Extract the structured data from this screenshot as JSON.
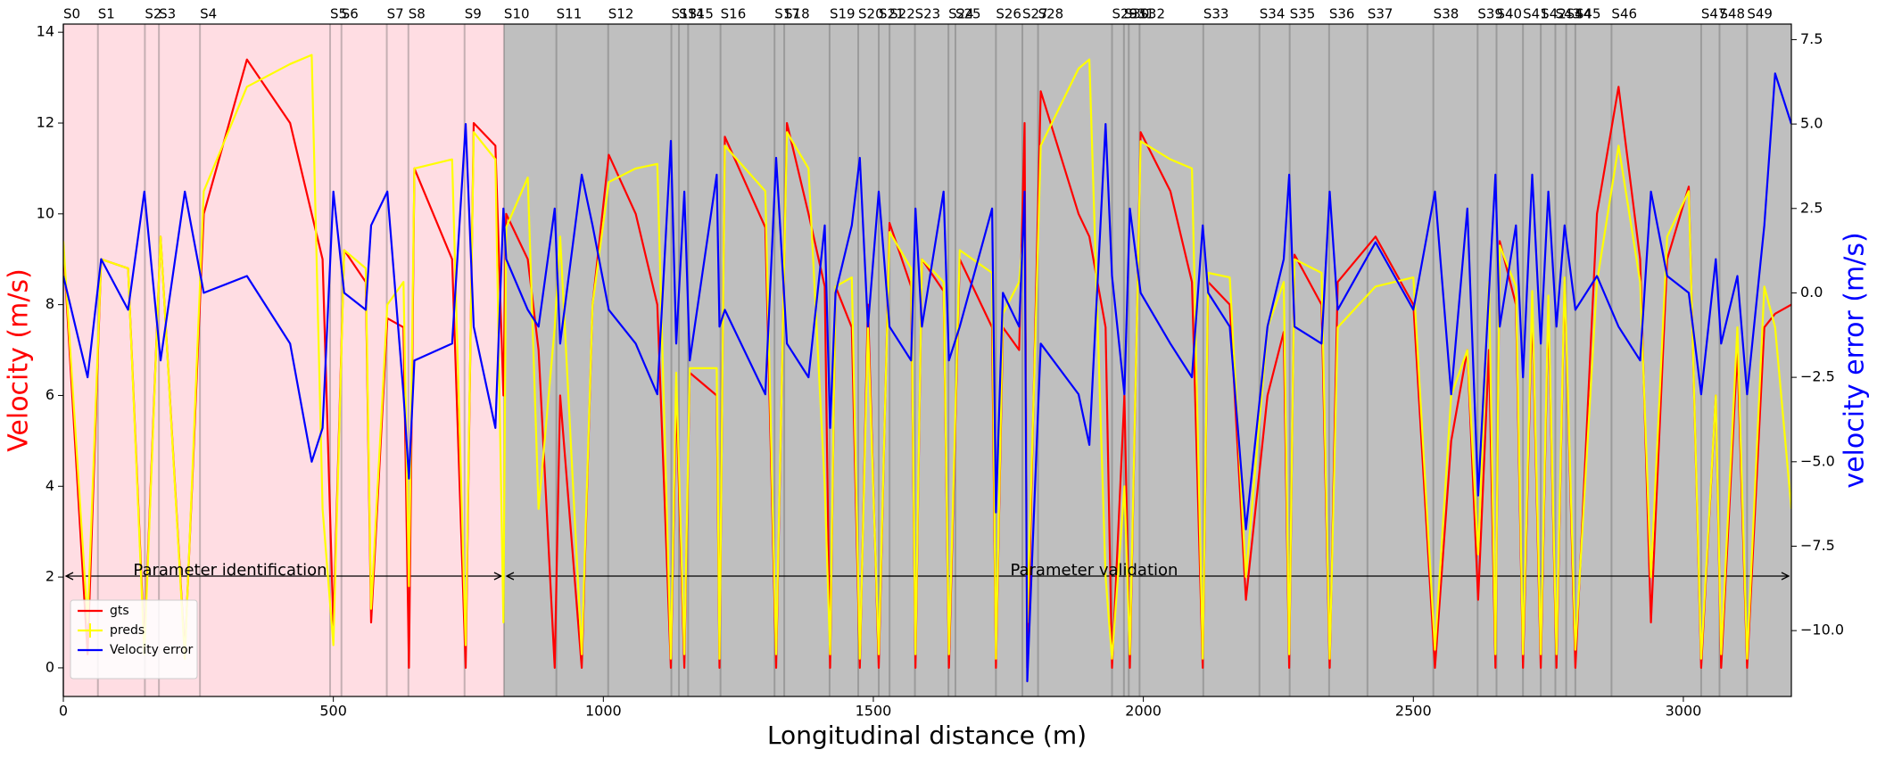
{
  "chart_data": {
    "type": "line",
    "x_label": "Longitudinal distance (m)",
    "y_label": "Velocity (m/s)",
    "y2_label": "velocity error (m/s)",
    "xlim": [
      0,
      3200
    ],
    "xticks": [
      0,
      500,
      1000,
      1500,
      2000,
      2500,
      3000
    ],
    "ylim": [
      -0.63,
      14.18
    ],
    "yticks": [
      0,
      2,
      4,
      6,
      8,
      10,
      12,
      14
    ],
    "y2lim": [
      -11.95,
      7.96
    ],
    "y2ticks": [
      {
        "value": -10,
        "label": "−10.0"
      },
      {
        "value": -7.5,
        "label": "−7.5"
      },
      {
        "value": -5,
        "label": "−5.0"
      },
      {
        "value": -2.5,
        "label": "−2.5"
      },
      {
        "value": 0,
        "label": "0.0"
      },
      {
        "value": 2.5,
        "label": "2.5"
      },
      {
        "value": 5,
        "label": "5.0"
      },
      {
        "value": 7.5,
        "label": "7.5"
      }
    ],
    "regions": [
      {
        "label": "Parameter identification",
        "start": 0,
        "end": 816,
        "color": "#ffdde3"
      },
      {
        "label": "Parameter validation",
        "start": 816,
        "end": 3200,
        "color": "#bfbfbf"
      }
    ],
    "segments": {
      "labels": [
        "S0",
        "S1",
        "S2",
        "S3",
        "S4",
        "S5",
        "S6",
        "S7",
        "S8",
        "S9",
        "S10",
        "S11",
        "S12",
        "S13",
        "S14",
        "S15",
        "S16",
        "S17",
        "S18",
        "S19",
        "S20",
        "S21",
        "S22",
        "S23",
        "S24",
        "S25",
        "S26",
        "S27",
        "S28",
        "S29",
        "S30",
        "S31",
        "S32",
        "S33",
        "S34",
        "S35",
        "S36",
        "S37",
        "S38",
        "S39",
        "S40",
        "S41",
        "S42",
        "S43",
        "S44",
        "S45",
        "S46",
        "S47",
        "S48",
        "S49"
      ],
      "x": [
        0,
        64,
        151,
        177,
        253,
        494,
        515,
        599,
        639,
        743,
        816,
        913,
        1009,
        1126,
        1140,
        1157,
        1217,
        1317,
        1335,
        1419,
        1472,
        1510,
        1530,
        1577,
        1639,
        1652,
        1727,
        1776,
        1805,
        1942,
        1964,
        1973,
        1993,
        2111,
        2215,
        2271,
        2344,
        2415,
        2537,
        2619,
        2654,
        2703,
        2736,
        2763,
        2783,
        2800,
        2867,
        3033,
        3067,
        3118
      ]
    },
    "legend": "lower left",
    "x": [
      0,
      45,
      70,
      120,
      150,
      180,
      225,
      260,
      340,
      420,
      460,
      480,
      500,
      520,
      560,
      570,
      600,
      630,
      640,
      650,
      720,
      745,
      760,
      800,
      815,
      820,
      860,
      880,
      910,
      920,
      960,
      980,
      1010,
      1060,
      1100,
      1125,
      1135,
      1150,
      1160,
      1210,
      1215,
      1225,
      1300,
      1320,
      1340,
      1380,
      1410,
      1420,
      1430,
      1460,
      1475,
      1490,
      1510,
      1530,
      1570,
      1578,
      1590,
      1630,
      1640,
      1660,
      1720,
      1727,
      1740,
      1770,
      1780,
      1785,
      1810,
      1880,
      1900,
      1930,
      1942,
      1965,
      1975,
      1995,
      2050,
      2090,
      2110,
      2120,
      2160,
      2190,
      2230,
      2260,
      2270,
      2280,
      2330,
      2345,
      2360,
      2430,
      2500,
      2540,
      2570,
      2600,
      2620,
      2640,
      2652,
      2660,
      2690,
      2703,
      2720,
      2736,
      2750,
      2765,
      2780,
      2800,
      2840,
      2880,
      2920,
      2940,
      2970,
      3010,
      3033,
      3060,
      3070,
      3100,
      3118,
      3150,
      3170,
      3200
    ],
    "series": [
      {
        "name": "gts",
        "color": "#ff0000",
        "values": [
          9.3,
          0.3,
          9.0,
          8.8,
          0.5,
          9.5,
          0.3,
          10,
          13.4,
          12,
          10,
          9,
          0.9,
          9.2,
          8.5,
          1,
          7.7,
          7.5,
          0,
          11,
          9,
          0,
          12,
          11.5,
          6,
          10,
          9,
          7,
          0,
          6,
          0,
          8,
          11.3,
          10,
          8,
          0,
          6,
          0,
          6.5,
          6,
          0,
          11.7,
          9.7,
          0,
          12,
          10,
          8.4,
          0,
          8.4,
          7.5,
          0,
          8,
          0,
          9.8,
          8.4,
          0,
          9,
          8.3,
          0,
          9,
          7.5,
          0,
          7.5,
          7,
          12,
          0,
          12.7,
          10,
          9.5,
          7.5,
          0,
          6,
          0,
          11.8,
          10.5,
          8.5,
          0,
          8.5,
          8,
          1.5,
          6,
          7.4,
          0,
          9.1,
          8,
          0,
          8.5,
          9.5,
          8,
          0,
          5,
          7,
          1.5,
          7,
          0,
          9.4,
          8,
          0,
          8,
          0,
          8,
          0,
          8.5,
          0,
          10,
          12.8,
          9,
          1,
          9,
          10.6,
          0,
          6,
          0,
          7,
          0,
          7.5,
          7.8,
          8
        ]
      },
      {
        "name": "preds",
        "color": "#ffff00",
        "values": [
          9.4,
          1.0,
          9.0,
          8.8,
          0.3,
          9.5,
          0.2,
          10.5,
          12.8,
          13.3,
          13.5,
          3.5,
          0.5,
          9.2,
          8.8,
          1.3,
          8.0,
          8.5,
          1.8,
          11.0,
          11.2,
          0.5,
          11.8,
          11.2,
          1.0,
          9.7,
          10.8,
          3.5,
          7.5,
          9.5,
          0.3,
          8.0,
          10.7,
          11.0,
          11.1,
          0.2,
          6.5,
          0.3,
          6.6,
          6.6,
          0.2,
          11.5,
          10.5,
          0.3,
          11.8,
          11.0,
          4.0,
          0.3,
          8.4,
          8.6,
          0.2,
          7.5,
          0.3,
          9.6,
          8.8,
          0.3,
          9.0,
          8.5,
          0.3,
          9.2,
          8.7,
          0.2,
          7.8,
          8.5,
          9.8,
          1.0,
          11.5,
          13.2,
          13.4,
          2.0,
          0.2,
          4.0,
          0.3,
          11.6,
          11.2,
          11.0,
          0.2,
          8.7,
          8.6,
          2.0,
          7.5,
          8.5,
          0.3,
          9.0,
          8.7,
          0.2,
          7.5,
          8.4,
          8.6,
          0.4,
          6.0,
          7.0,
          2.5,
          8.5,
          0.3,
          9.3,
          8.4,
          0.3,
          8.3,
          0.3,
          8.2,
          0.3,
          8.6,
          0.4,
          8.5,
          11.5,
          8.5,
          2.0,
          9.5,
          10.5,
          0.2,
          6.0,
          0.3,
          7.5,
          0.2,
          8.4,
          7.5,
          3.5
        ]
      },
      {
        "name": "Velocity error",
        "color": "#0000ff",
        "axis": "y2",
        "values": [
          0.5,
          -2.5,
          1.0,
          -0.5,
          3.0,
          -2.0,
          3.0,
          0,
          0.5,
          -1.5,
          -5.0,
          -4.0,
          3.0,
          0,
          -0.5,
          2.0,
          3.0,
          -3.0,
          -5.5,
          -2.0,
          -1.5,
          5.0,
          -1.0,
          -4.0,
          2.5,
          1.0,
          -0.5,
          -1.0,
          2.5,
          -1.5,
          3.5,
          2.0,
          -0.5,
          -1.5,
          -3.0,
          4.5,
          -1.5,
          3.0,
          -2.0,
          3.5,
          -1.0,
          -0.5,
          -3.0,
          4.0,
          -1.5,
          -2.5,
          2.0,
          -4.0,
          0,
          2.0,
          4.0,
          -1.0,
          3.0,
          -1.0,
          -2.0,
          2.5,
          -1.0,
          3.0,
          -2.0,
          -1.0,
          2.5,
          -6.5,
          0,
          -1.0,
          3.0,
          -11.5,
          -1.5,
          -3.0,
          -4.5,
          5.0,
          0.5,
          -3.0,
          2.5,
          0,
          -1.5,
          -2.5,
          2.0,
          0,
          -1.0,
          -7.0,
          -1.0,
          1.0,
          3.5,
          -1.0,
          -1.5,
          3.0,
          -0.5,
          1.5,
          -0.5,
          3.0,
          -3.0,
          2.5,
          -6.0,
          0,
          3.5,
          -1.0,
          2.0,
          -2.5,
          3.5,
          -1.5,
          3.0,
          -1.0,
          2.0,
          -0.5,
          0.5,
          -1.0,
          -2.0,
          3.0,
          0.5,
          0,
          -3.0,
          1.0,
          -1.5,
          0.5,
          -3.0,
          2.0,
          6.5,
          5.0
        ]
      }
    ]
  }
}
